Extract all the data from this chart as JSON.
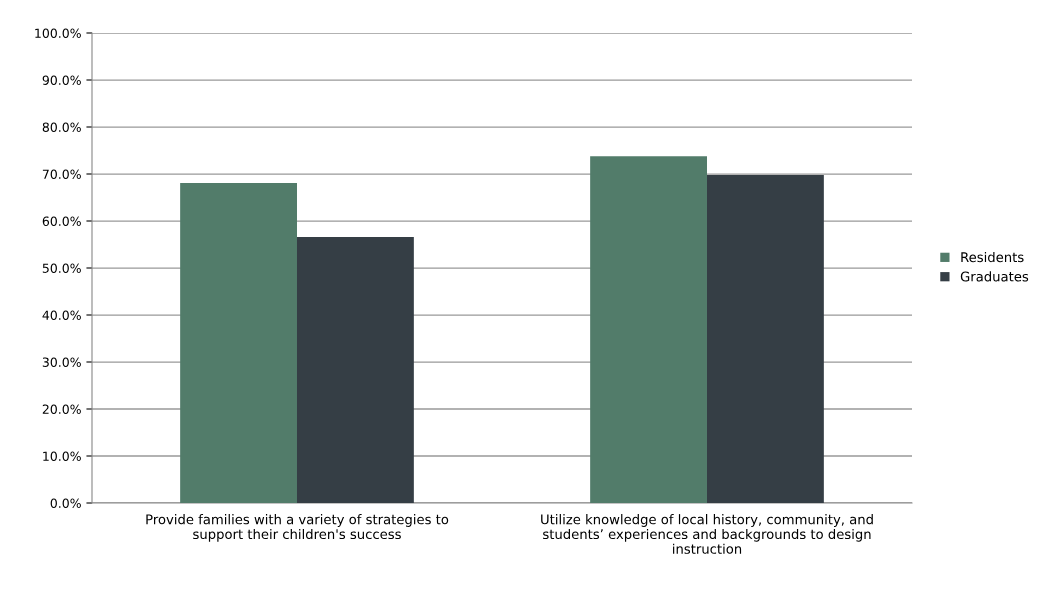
{
  "chart_data": {
    "type": "bar",
    "categories": [
      "Provide families with a variety of strategies to support their children's success",
      "Utilize knowledge of local history, community, and students’ experiences and backgrounds to design instruction"
    ],
    "series": [
      {
        "name": "Residents",
        "color": "#527c6a",
        "values": [
          68.1,
          73.8
        ]
      },
      {
        "name": "Graduates",
        "color": "#353e45",
        "values": [
          56.6,
          69.8
        ]
      }
    ],
    "ylim": [
      0,
      100
    ],
    "yticks": [
      {
        "value": 0,
        "label": "0.0%"
      },
      {
        "value": 10,
        "label": "10.0%"
      },
      {
        "value": 20,
        "label": "20.0%"
      },
      {
        "value": 30,
        "label": "30.0%"
      },
      {
        "value": 40,
        "label": "40.0%"
      },
      {
        "value": 50,
        "label": "50.0%"
      },
      {
        "value": 60,
        "label": "60.0%"
      },
      {
        "value": 70,
        "label": "70.0%"
      },
      {
        "value": 80,
        "label": "80.0%"
      },
      {
        "value": 90,
        "label": "90.0%"
      },
      {
        "value": 100,
        "label": "100.0%"
      }
    ],
    "grid": "y",
    "legend": "right"
  }
}
